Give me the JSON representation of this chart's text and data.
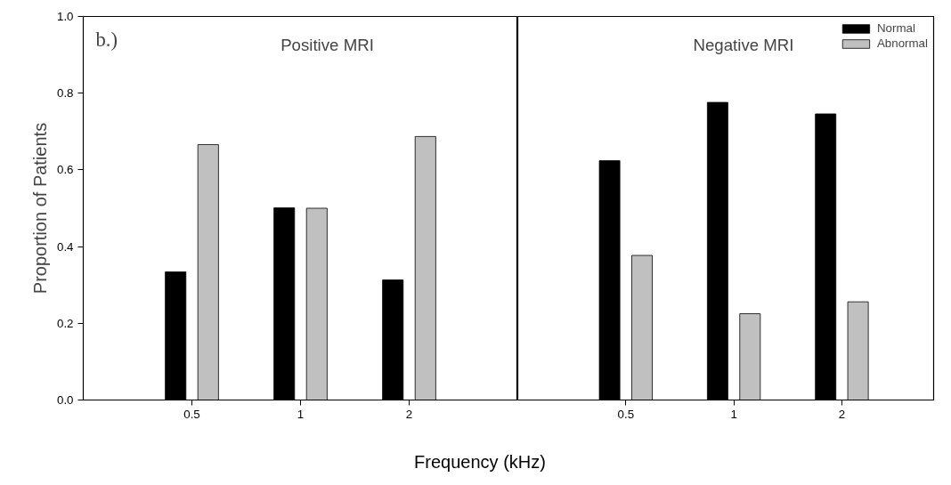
{
  "chart_data": [
    {
      "type": "bar",
      "title": "Positive MRI",
      "ylabel": "Proportion of Patients",
      "xlabel": "Frequency (kHz)",
      "annotations": [
        "b.)"
      ],
      "categories": [
        "0.5",
        "1",
        "2"
      ],
      "series": [
        {
          "color": "#000000",
          "values": [
            0.334,
            0.501,
            0.313
          ]
        },
        {
          "color": "#c0c0c0",
          "values": [
            0.666,
            0.5,
            0.687
          ]
        }
      ],
      "ylim": [
        0,
        1
      ],
      "yticks": [
        {
          "value": 0,
          "label": "0.0"
        },
        0.2,
        0.4,
        0.6,
        0.8,
        {
          "value": 1,
          "label": "1.0"
        }
      ],
      "grid": false,
      "legend": false
    },
    {
      "type": "bar",
      "title": "Negative MRI",
      "categories": [
        "0.5",
        "1",
        "2"
      ],
      "series": [
        {
          "name": "Normal",
          "color": "#000000",
          "values": [
            0.624,
            0.776,
            0.746
          ]
        },
        {
          "name": "Abnormal",
          "color": "#c0c0c0",
          "values": [
            0.377,
            0.225,
            0.256
          ]
        }
      ],
      "ylim": [
        0,
        1
      ],
      "grid": false,
      "legend": "top right",
      "tick_labels": "x"
    }
  ]
}
